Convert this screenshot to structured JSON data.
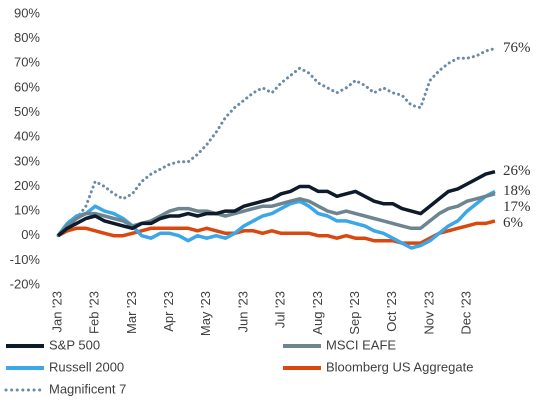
{
  "chart_data": {
    "type": "line",
    "categories": [
      "Jan '23",
      null,
      null,
      null,
      "Feb '23",
      null,
      null,
      null,
      "Mar '23",
      null,
      null,
      null,
      "Apr '23",
      null,
      null,
      null,
      "May '23",
      null,
      null,
      null,
      "Jun '23",
      null,
      null,
      null,
      "Jul '23",
      null,
      null,
      null,
      "Aug '23",
      null,
      null,
      null,
      "Sep '23",
      null,
      null,
      null,
      "Oct '23",
      null,
      null,
      null,
      "Nov '23",
      null,
      null,
      null,
      "Dec '23",
      null,
      null,
      null
    ],
    "series": [
      {
        "name": "S&P 500",
        "color": "#0d1b2a",
        "style": "solid",
        "end_label": "26%",
        "values": [
          0,
          3,
          5,
          7,
          8,
          6,
          5,
          4,
          3,
          5,
          5,
          7,
          8,
          8,
          9,
          8,
          9,
          9,
          10,
          10,
          12,
          13,
          14,
          15,
          17,
          18,
          20,
          20,
          18,
          18,
          16,
          17,
          18,
          16,
          14,
          13,
          13,
          11,
          10,
          9,
          12,
          15,
          18,
          19,
          21,
          23,
          25,
          26
        ]
      },
      {
        "name": "MSCI EAFE",
        "color": "#6c8591",
        "style": "solid",
        "end_label": "17%",
        "values": [
          0,
          4,
          7,
          9,
          9,
          8,
          7,
          6,
          4,
          5,
          6,
          8,
          10,
          11,
          11,
          10,
          10,
          9,
          8,
          9,
          10,
          11,
          12,
          12,
          13,
          14,
          15,
          14,
          12,
          10,
          9,
          10,
          9,
          8,
          7,
          6,
          5,
          4,
          3,
          3,
          6,
          9,
          11,
          12,
          14,
          15,
          16,
          17
        ]
      },
      {
        "name": "Russell 2000",
        "color": "#3ba7e8",
        "style": "solid",
        "end_label": "18%",
        "values": [
          0,
          5,
          8,
          9,
          12,
          10,
          9,
          7,
          4,
          0,
          -1,
          1,
          1,
          0,
          -2,
          0,
          -1,
          0,
          -1,
          1,
          4,
          6,
          8,
          9,
          11,
          13,
          14,
          12,
          9,
          8,
          6,
          6,
          5,
          4,
          2,
          1,
          -1,
          -3,
          -5,
          -4,
          -2,
          1,
          4,
          6,
          10,
          13,
          16,
          18
        ]
      },
      {
        "name": "Bloomberg US Aggregate",
        "color": "#d9480f",
        "style": "solid",
        "end_label": "6%",
        "values": [
          0,
          2,
          3,
          3,
          2,
          1,
          0,
          0,
          1,
          2,
          3,
          3,
          3,
          3,
          3,
          2,
          3,
          2,
          1,
          1,
          2,
          2,
          1,
          2,
          1,
          1,
          1,
          1,
          0,
          0,
          -1,
          0,
          -1,
          -1,
          -2,
          -2,
          -2,
          -3,
          -3,
          -3,
          -1,
          1,
          2,
          3,
          4,
          5,
          5,
          6
        ]
      },
      {
        "name": "Magnificent 7",
        "color": "#6b8aa6",
        "style": "dotted",
        "end_label": "76%",
        "values": [
          0,
          3,
          7,
          12,
          22,
          20,
          17,
          15,
          17,
          22,
          25,
          27,
          29,
          30,
          30,
          33,
          37,
          42,
          48,
          52,
          55,
          58,
          60,
          58,
          62,
          65,
          68,
          66,
          62,
          60,
          58,
          60,
          63,
          61,
          58,
          60,
          58,
          57,
          53,
          52,
          63,
          67,
          70,
          72,
          72,
          73,
          75,
          76
        ]
      }
    ],
    "ylim": [
      -20,
      90
    ],
    "yticks": [
      {
        "value": -20,
        "label": "-20%"
      },
      {
        "value": -10,
        "label": "-10%"
      },
      {
        "value": 0,
        "label": "0%"
      },
      {
        "value": 10,
        "label": "10%"
      },
      {
        "value": 20,
        "label": "20%"
      },
      {
        "value": 30,
        "label": "30%"
      },
      {
        "value": 40,
        "label": "40%"
      },
      {
        "value": 50,
        "label": "50%"
      },
      {
        "value": 60,
        "label": "60%"
      },
      {
        "value": 70,
        "label": "70%"
      },
      {
        "value": 80,
        "label": "80%"
      },
      {
        "value": 90,
        "label": "90%"
      }
    ],
    "grid": false,
    "legend": "bottom"
  }
}
